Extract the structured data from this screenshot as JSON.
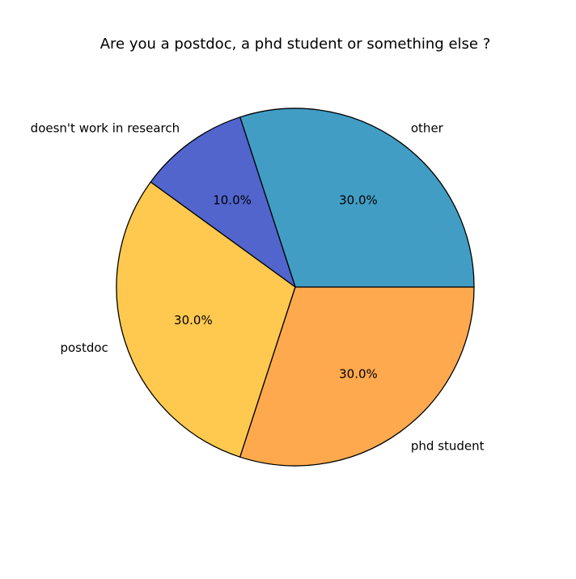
{
  "chart_data": {
    "type": "pie",
    "title": "Are you a postdoc, a phd student or something else ?",
    "slices": [
      {
        "label": "other",
        "value": 30.0,
        "percent_label": "30.0%",
        "color": "#419dc4"
      },
      {
        "label": "doesn't work in research",
        "value": 10.0,
        "percent_label": "10.0%",
        "color": "#5165cd"
      },
      {
        "label": "postdoc",
        "value": 30.0,
        "percent_label": "30.0%",
        "color": "#ffc94f"
      },
      {
        "label": "phd student",
        "value": 30.0,
        "percent_label": "30.0%",
        "color": "#ffa94e"
      }
    ],
    "start_angle_deg": 0,
    "direction": "counterclockwise",
    "edge_color": "#000000",
    "legend": "none"
  }
}
